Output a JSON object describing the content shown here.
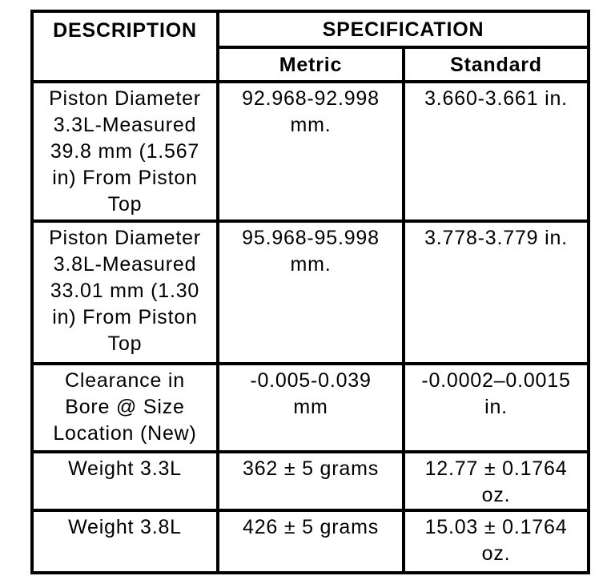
{
  "page": {
    "background_color": "#ffffff",
    "border_color": "#000000",
    "text_color": "#000000"
  },
  "table": {
    "header": {
      "description": "DESCRIPTION",
      "specification": "SPECIFICATION",
      "metric": "Metric",
      "standard": "Standard"
    },
    "rows": [
      {
        "description": "Piston Diameter\n3.3L-Measured\n39.8 mm (1.567\nin) From Piston\nTop",
        "metric": "92.968-92.998\nmm.",
        "standard": "3.660-3.661 in."
      },
      {
        "description": "Piston Diameter\n3.8L-Measured\n33.01 mm (1.30\nin) From Piston\nTop",
        "metric": "95.968-95.998\nmm.",
        "standard": "3.778-3.779 in."
      },
      {
        "description": "Clearance in\nBore @ Size\nLocation (New)",
        "metric": "-0.005-0.039\nmm",
        "standard": "-0.0002–0.0015\nin."
      },
      {
        "description": "Weight 3.3L",
        "metric": "362 ± 5 grams",
        "standard": "12.77 ± 0.1764\noz."
      },
      {
        "description": "Weight 3.8L",
        "metric": "426 ± 5 grams",
        "standard": "15.03 ± 0.1764\noz."
      }
    ]
  }
}
